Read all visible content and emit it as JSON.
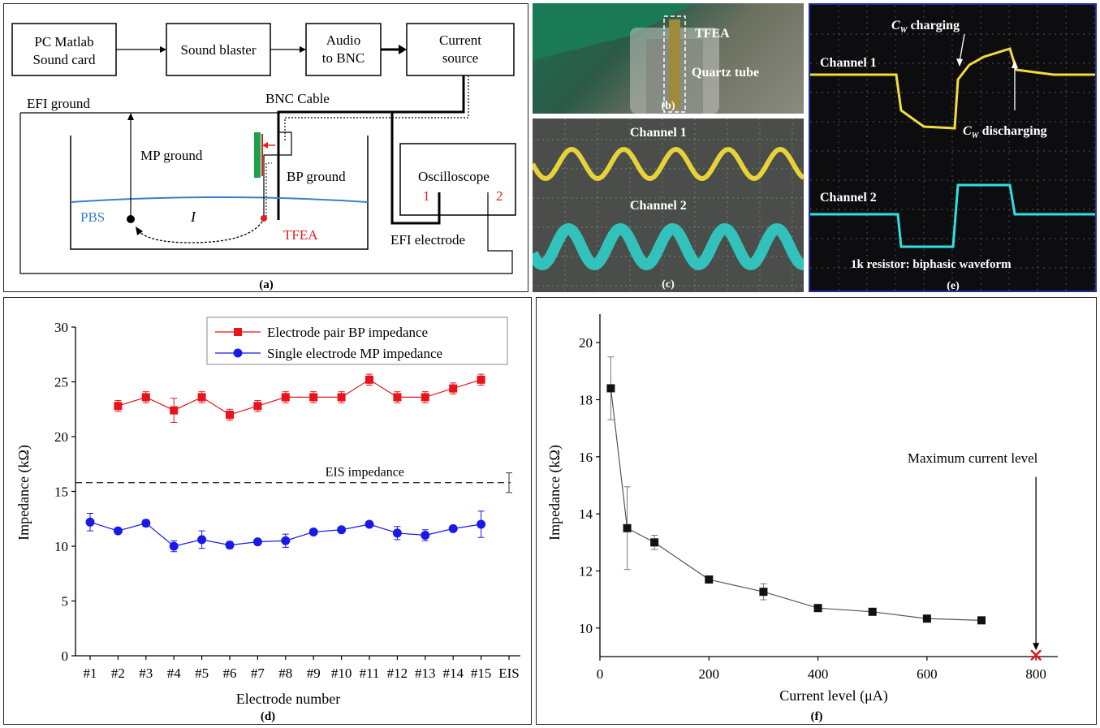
{
  "panel_a": {
    "caption": "(a)",
    "box_pc_line1": "PC Matlab",
    "box_pc_line2": "Sound card",
    "box_sound_blaster": "Sound blaster",
    "box_audio_line1": "Audio",
    "box_audio_line2": "to BNC",
    "box_current_line1": "Current",
    "box_current_line2": "source",
    "box_oscilloscope": "Oscilloscope",
    "osc_ch1": "1",
    "osc_ch2": "2",
    "efi_ground": "EFI ground",
    "bnc_cable": "BNC Cable",
    "mp_ground": "MP ground",
    "bp_ground": "BP ground",
    "pbs": "PBS",
    "current_symbol": "I",
    "tfea": "TFEA",
    "efi_electrode": "EFI electrode",
    "colors": {
      "pbs": "#3a7fc9",
      "tfea": "#e02020",
      "electrode": "#1aa34a"
    }
  },
  "panel_b": {
    "caption": "(b)",
    "tfea": "TFEA",
    "quartz_tube": "Quartz tube"
  },
  "panel_c": {
    "caption": "(c)",
    "channel1": "Channel 1",
    "channel2": "Channel 2",
    "colors": {
      "ch1": "#e8d23a",
      "ch2": "#2fd6d0"
    }
  },
  "panel_e": {
    "caption": "(e)",
    "channel1": "Channel 1",
    "channel2": "Channel 2",
    "cw": "C",
    "cw_sub": "W",
    "charging": " charging",
    "discharging": " discharging",
    "resistor": "1k resistor: biphasic waveform"
  },
  "panel_d": {
    "caption": "(d)"
  },
  "panel_f": {
    "caption": "(f)"
  },
  "chart_data": [
    {
      "type": "line",
      "xlabel": "Electrode number",
      "ylabel": "Impedance (kΩ)",
      "ylim": [
        0,
        30
      ],
      "yticks": [
        "0",
        "5",
        "10",
        "15",
        "20",
        "25",
        "30"
      ],
      "categories": [
        "#1",
        "#2",
        "#3",
        "#4",
        "#5",
        "#6",
        "#7",
        "#8",
        "#9",
        "#10",
        "#11",
        "#12",
        "#13",
        "#14",
        "#15",
        "EIS"
      ],
      "legend_position": "top-right",
      "series": [
        {
          "name": "Electrode pair BP impedance",
          "color": "#e8141c",
          "marker": "square",
          "x": [
            "#2",
            "#3",
            "#4",
            "#5",
            "#6",
            "#7",
            "#8",
            "#9",
            "#10",
            "#11",
            "#12",
            "#13",
            "#14",
            "#15"
          ],
          "values": [
            22.8,
            23.6,
            22.4,
            23.6,
            22.0,
            22.8,
            23.6,
            23.6,
            23.6,
            25.2,
            23.6,
            23.6,
            24.4,
            25.2
          ],
          "errors": [
            0.5,
            0.5,
            1.1,
            0.5,
            0.5,
            0.5,
            0.5,
            0.5,
            0.5,
            0.5,
            0.5,
            0.5,
            0.5,
            0.5
          ]
        },
        {
          "name": "Single electrode MP impedance",
          "color": "#1a1ae6",
          "marker": "circle",
          "x": [
            "#1",
            "#2",
            "#3",
            "#4",
            "#5",
            "#6",
            "#7",
            "#8",
            "#9",
            "#10",
            "#11",
            "#12",
            "#13",
            "#14",
            "#15"
          ],
          "values": [
            12.2,
            11.4,
            12.1,
            10.0,
            10.6,
            10.1,
            10.4,
            10.5,
            11.3,
            11.5,
            12.0,
            11.2,
            11.0,
            11.6,
            12.0
          ],
          "errors": [
            0.8,
            0.2,
            0.3,
            0.5,
            0.8,
            0.3,
            0.2,
            0.6,
            0.2,
            0.2,
            0.2,
            0.6,
            0.5,
            0.2,
            1.2
          ]
        }
      ],
      "reference_line": {
        "label": "EIS impedance",
        "value": 15.8
      },
      "eis_errorbar": {
        "x": "EIS",
        "value": 15.8,
        "error": 0.9
      }
    },
    {
      "type": "line",
      "xlabel": "Current level (μA)",
      "ylabel": "Impedance (kΩ)",
      "xlim": [
        0,
        840
      ],
      "ylim": [
        9,
        21
      ],
      "xticks": [
        0,
        200,
        400,
        600,
        800
      ],
      "yticks": [
        10,
        12,
        14,
        16,
        18,
        20
      ],
      "series": [
        {
          "color": "#111111",
          "marker": "square",
          "x": [
            20,
            50,
            100,
            200,
            300,
            400,
            500,
            600,
            700
          ],
          "values": [
            18.4,
            13.5,
            13.0,
            11.7,
            11.27,
            10.7,
            10.57,
            10.33,
            10.27
          ],
          "errors": [
            1.1,
            1.45,
            0.25,
            0.1,
            0.28,
            0.1,
            0.08,
            0.08,
            0.08
          ]
        }
      ],
      "annotation": {
        "text": "Maximum current level",
        "x": 800,
        "marker_value": 9.05,
        "marker_color": "#e8141c"
      }
    }
  ]
}
